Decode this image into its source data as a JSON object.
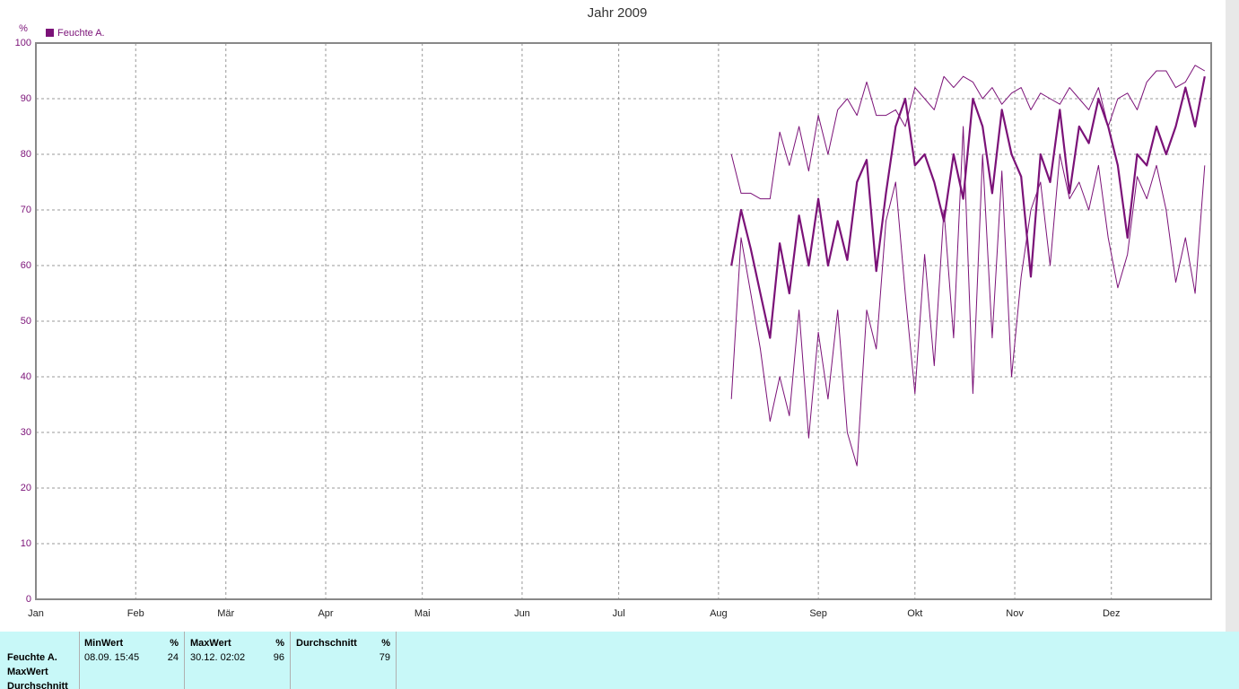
{
  "chart_data": {
    "type": "line",
    "title": "Jahr 2009",
    "y_label": "%",
    "x": [
      217,
      220,
      223,
      226,
      229,
      232,
      235,
      238,
      241,
      244,
      247,
      250,
      253,
      256,
      259,
      262,
      265,
      268,
      271,
      274,
      277,
      280,
      283,
      286,
      289,
      292,
      295,
      298,
      301,
      304,
      307,
      310,
      313,
      316,
      319,
      322,
      325,
      328,
      331,
      334,
      337,
      340,
      343,
      346,
      349,
      352,
      355,
      358,
      361,
      364
    ],
    "series": [
      {
        "color": "#7b1278",
        "width": 1,
        "values": [
          80,
          73,
          73,
          72,
          72,
          84,
          78,
          85,
          77,
          87,
          80,
          88,
          90,
          87,
          93,
          87,
          87,
          88,
          85,
          92,
          90,
          88,
          94,
          92,
          94,
          93,
          90,
          92,
          89,
          91,
          92,
          88,
          91,
          90,
          89,
          92,
          90,
          88,
          92,
          85,
          90,
          91,
          88,
          93,
          95,
          95,
          92,
          93,
          96,
          95
        ]
      },
      {
        "name": "Feuchte A.",
        "color": "#7b1278",
        "width": 2.2,
        "values": [
          60,
          70,
          63,
          55,
          47,
          64,
          55,
          69,
          60,
          72,
          60,
          68,
          61,
          75,
          79,
          59,
          73,
          85,
          90,
          78,
          80,
          75,
          68,
          80,
          72,
          90,
          85,
          73,
          88,
          80,
          76,
          58,
          80,
          75,
          88,
          73,
          85,
          82,
          90,
          85,
          78,
          65,
          80,
          78,
          85,
          80,
          85,
          92,
          85,
          94
        ]
      },
      {
        "color": "#7b1278",
        "width": 1,
        "values": [
          36,
          65,
          55,
          45,
          32,
          40,
          33,
          52,
          29,
          48,
          36,
          52,
          30,
          24,
          52,
          45,
          68,
          75,
          55,
          37,
          62,
          42,
          70,
          47,
          85,
          37,
          80,
          47,
          77,
          40,
          58,
          70,
          75,
          60,
          80,
          72,
          75,
          70,
          78,
          65,
          56,
          62,
          76,
          72,
          78,
          70,
          57,
          65,
          55,
          78
        ]
      }
    ],
    "xlim": [
      1,
      366
    ],
    "xticks": [
      {
        "value": 1,
        "label": "Jan"
      },
      {
        "value": 32,
        "label": "Feb"
      },
      {
        "value": 60,
        "label": "Mär"
      },
      {
        "value": 91,
        "label": "Apr"
      },
      {
        "value": 121,
        "label": "Mai"
      },
      {
        "value": 152,
        "label": "Jun"
      },
      {
        "value": 182,
        "label": "Jul"
      },
      {
        "value": 213,
        "label": "Aug"
      },
      {
        "value": 244,
        "label": "Sep"
      },
      {
        "value": 274,
        "label": "Okt"
      },
      {
        "value": 305,
        "label": "Nov"
      },
      {
        "value": 335,
        "label": "Dez"
      }
    ],
    "ylim": [
      0,
      100
    ],
    "yticks": [
      0,
      10,
      20,
      30,
      40,
      50,
      60,
      70,
      80,
      90,
      100
    ],
    "grid": true
  },
  "stats_table": {
    "row_labels": [
      "Feuchte A.",
      "MaxWert",
      "Durchschnitt"
    ],
    "columns": [
      {
        "header": "MinWert",
        "unit": "%",
        "time": "08.09.  15:45",
        "value": 24
      },
      {
        "header": "MaxWert",
        "unit": "%",
        "time": "30.12.  02:02",
        "value": 96
      },
      {
        "header": "Durchschnitt",
        "unit": "%",
        "value": 79
      }
    ]
  }
}
